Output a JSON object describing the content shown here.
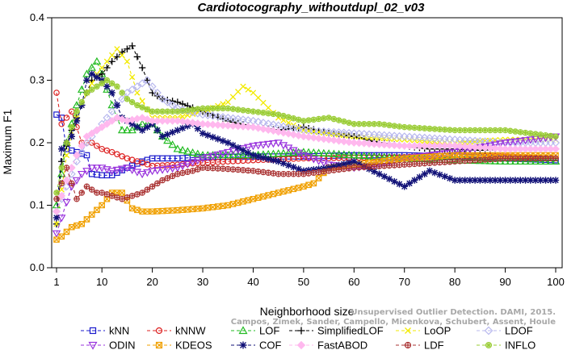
{
  "chart_data": {
    "type": "line",
    "title": "Cardiotocography_withoutdupl_02_v03",
    "xlabel": "Neighborhood size",
    "ylabel": "Maximum F1",
    "xlim": [
      1,
      100
    ],
    "ylim": [
      0.0,
      0.4
    ],
    "x_ticks": [
      1,
      10,
      20,
      30,
      40,
      50,
      60,
      70,
      80,
      90,
      100
    ],
    "y_ticks": [
      "0.0",
      "0.1",
      "0.2",
      "0.3",
      "0.4"
    ],
    "grid": false,
    "legend_position": "bottom",
    "series": [
      {
        "name": "kNN",
        "color": "#1a1acc",
        "marker": "square",
        "points": [
          [
            1,
            0.245
          ],
          [
            2,
            0.24
          ],
          [
            3,
            0.19
          ],
          [
            5,
            0.185
          ],
          [
            7,
            0.18
          ],
          [
            8,
            0.15
          ],
          [
            10,
            0.148
          ],
          [
            12,
            0.148
          ],
          [
            15,
            0.16
          ],
          [
            18,
            0.17
          ],
          [
            20,
            0.175
          ],
          [
            25,
            0.175
          ],
          [
            30,
            0.177
          ],
          [
            40,
            0.178
          ],
          [
            50,
            0.178
          ],
          [
            60,
            0.18
          ],
          [
            70,
            0.18
          ],
          [
            80,
            0.178
          ],
          [
            90,
            0.175
          ],
          [
            100,
            0.172
          ]
        ]
      },
      {
        "name": "kNNW",
        "color": "#dd2222",
        "marker": "circle",
        "points": [
          [
            1,
            0.28
          ],
          [
            2,
            0.23
          ],
          [
            4,
            0.25
          ],
          [
            6,
            0.2
          ],
          [
            8,
            0.2
          ],
          [
            10,
            0.19
          ],
          [
            12,
            0.185
          ],
          [
            15,
            0.175
          ],
          [
            18,
            0.168
          ],
          [
            20,
            0.163
          ],
          [
            25,
            0.165
          ],
          [
            30,
            0.168
          ],
          [
            40,
            0.172
          ],
          [
            50,
            0.175
          ],
          [
            60,
            0.176
          ],
          [
            70,
            0.177
          ],
          [
            80,
            0.18
          ],
          [
            90,
            0.178
          ],
          [
            100,
            0.175
          ]
        ]
      },
      {
        "name": "LOF",
        "color": "#22bb22",
        "marker": "triangle-up",
        "points": [
          [
            1,
            0.1
          ],
          [
            3,
            0.2
          ],
          [
            5,
            0.26
          ],
          [
            7,
            0.31
          ],
          [
            9,
            0.33
          ],
          [
            10,
            0.31
          ],
          [
            12,
            0.26
          ],
          [
            14,
            0.22
          ],
          [
            16,
            0.22
          ],
          [
            18,
            0.23
          ],
          [
            20,
            0.23
          ],
          [
            22,
            0.21
          ],
          [
            25,
            0.19
          ],
          [
            30,
            0.18
          ],
          [
            40,
            0.18
          ],
          [
            50,
            0.185
          ],
          [
            60,
            0.18
          ],
          [
            70,
            0.175
          ],
          [
            80,
            0.172
          ],
          [
            90,
            0.17
          ],
          [
            100,
            0.17
          ]
        ]
      },
      {
        "name": "SimplifiedLOF",
        "color": "#000000",
        "marker": "plus",
        "points": [
          [
            1,
            0.07
          ],
          [
            2,
            0.17
          ],
          [
            4,
            0.22
          ],
          [
            6,
            0.26
          ],
          [
            8,
            0.3
          ],
          [
            10,
            0.31
          ],
          [
            12,
            0.33
          ],
          [
            14,
            0.345
          ],
          [
            16,
            0.355
          ],
          [
            18,
            0.32
          ],
          [
            20,
            0.28
          ],
          [
            22,
            0.27
          ],
          [
            25,
            0.265
          ],
          [
            30,
            0.25
          ],
          [
            35,
            0.235
          ],
          [
            40,
            0.225
          ],
          [
            45,
            0.22
          ],
          [
            50,
            0.225
          ],
          [
            55,
            0.215
          ],
          [
            60,
            0.21
          ],
          [
            65,
            0.2
          ],
          [
            70,
            0.195
          ],
          [
            75,
            0.19
          ],
          [
            80,
            0.19
          ],
          [
            85,
            0.188
          ],
          [
            90,
            0.19
          ],
          [
            95,
            0.19
          ],
          [
            100,
            0.19
          ]
        ]
      },
      {
        "name": "LoOP",
        "color": "#f2ea00",
        "marker": "x",
        "points": [
          [
            1,
            0.07
          ],
          [
            3,
            0.18
          ],
          [
            5,
            0.24
          ],
          [
            7,
            0.28
          ],
          [
            9,
            0.31
          ],
          [
            11,
            0.33
          ],
          [
            13,
            0.35
          ],
          [
            15,
            0.33
          ],
          [
            17,
            0.28
          ],
          [
            20,
            0.24
          ],
          [
            25,
            0.24
          ],
          [
            30,
            0.25
          ],
          [
            35,
            0.265
          ],
          [
            38,
            0.29
          ],
          [
            40,
            0.28
          ],
          [
            45,
            0.24
          ],
          [
            50,
            0.22
          ],
          [
            55,
            0.215
          ],
          [
            60,
            0.21
          ],
          [
            70,
            0.205
          ],
          [
            80,
            0.2
          ],
          [
            90,
            0.205
          ],
          [
            100,
            0.205
          ]
        ]
      },
      {
        "name": "LDOF",
        "color": "#b8b8ee",
        "marker": "diamond",
        "points": [
          [
            1,
            0.09
          ],
          [
            3,
            0.13
          ],
          [
            5,
            0.17
          ],
          [
            7,
            0.2
          ],
          [
            9,
            0.22
          ],
          [
            11,
            0.24
          ],
          [
            13,
            0.26
          ],
          [
            15,
            0.28
          ],
          [
            17,
            0.29
          ],
          [
            19,
            0.3
          ],
          [
            20,
            0.29
          ],
          [
            22,
            0.27
          ],
          [
            25,
            0.255
          ],
          [
            30,
            0.245
          ],
          [
            40,
            0.235
          ],
          [
            50,
            0.22
          ],
          [
            60,
            0.215
          ],
          [
            70,
            0.21
          ],
          [
            80,
            0.205
          ],
          [
            90,
            0.2
          ],
          [
            100,
            0.2
          ]
        ]
      },
      {
        "name": "ODIN",
        "color": "#9933dd",
        "marker": "triangle-down",
        "points": [
          [
            1,
            0.055
          ],
          [
            2,
            0.08
          ],
          [
            4,
            0.13
          ],
          [
            6,
            0.15
          ],
          [
            8,
            0.16
          ],
          [
            10,
            0.16
          ],
          [
            12,
            0.155
          ],
          [
            15,
            0.16
          ],
          [
            18,
            0.15
          ],
          [
            20,
            0.155
          ],
          [
            25,
            0.16
          ],
          [
            30,
            0.175
          ],
          [
            35,
            0.185
          ],
          [
            40,
            0.195
          ],
          [
            45,
            0.2
          ],
          [
            50,
            0.18
          ],
          [
            55,
            0.165
          ],
          [
            60,
            0.16
          ],
          [
            65,
            0.165
          ],
          [
            70,
            0.175
          ],
          [
            80,
            0.185
          ],
          [
            90,
            0.2
          ],
          [
            100,
            0.21
          ]
        ]
      },
      {
        "name": "KDEOS",
        "color": "#f0a000",
        "marker": "box-x",
        "points": [
          [
            1,
            0.045
          ],
          [
            2,
            0.05
          ],
          [
            4,
            0.065
          ],
          [
            6,
            0.07
          ],
          [
            8,
            0.085
          ],
          [
            10,
            0.1
          ],
          [
            12,
            0.12
          ],
          [
            14,
            0.12
          ],
          [
            16,
            0.095
          ],
          [
            18,
            0.09
          ],
          [
            20,
            0.09
          ],
          [
            25,
            0.092
          ],
          [
            30,
            0.095
          ],
          [
            35,
            0.1
          ],
          [
            40,
            0.11
          ],
          [
            45,
            0.12
          ],
          [
            50,
            0.13
          ],
          [
            52,
            0.135
          ],
          [
            55,
            0.16
          ],
          [
            60,
            0.165
          ],
          [
            65,
            0.17
          ],
          [
            70,
            0.175
          ],
          [
            80,
            0.18
          ],
          [
            90,
            0.18
          ],
          [
            100,
            0.18
          ]
        ]
      },
      {
        "name": "COF",
        "color": "#111177",
        "marker": "asterisk",
        "points": [
          [
            1,
            0.08
          ],
          [
            2,
            0.19
          ],
          [
            4,
            0.21
          ],
          [
            6,
            0.26
          ],
          [
            7,
            0.3
          ],
          [
            8,
            0.31
          ],
          [
            10,
            0.3
          ],
          [
            12,
            0.28
          ],
          [
            14,
            0.24
          ],
          [
            16,
            0.23
          ],
          [
            18,
            0.22
          ],
          [
            20,
            0.23
          ],
          [
            22,
            0.21
          ],
          [
            25,
            0.22
          ],
          [
            28,
            0.23
          ],
          [
            30,
            0.215
          ],
          [
            35,
            0.2
          ],
          [
            40,
            0.18
          ],
          [
            45,
            0.17
          ],
          [
            50,
            0.155
          ],
          [
            55,
            0.16
          ],
          [
            60,
            0.17
          ],
          [
            65,
            0.15
          ],
          [
            70,
            0.13
          ],
          [
            75,
            0.155
          ],
          [
            80,
            0.14
          ],
          [
            90,
            0.14
          ],
          [
            100,
            0.14
          ]
        ]
      },
      {
        "name": "FastABOD",
        "color": "#ffb8ee",
        "marker": "diamond-filled",
        "points": [
          [
            1,
            0.09
          ],
          [
            3,
            0.14
          ],
          [
            5,
            0.18
          ],
          [
            7,
            0.21
          ],
          [
            9,
            0.22
          ],
          [
            11,
            0.23
          ],
          [
            13,
            0.24
          ],
          [
            15,
            0.235
          ],
          [
            18,
            0.24
          ],
          [
            20,
            0.235
          ],
          [
            25,
            0.235
          ],
          [
            30,
            0.23
          ],
          [
            40,
            0.225
          ],
          [
            50,
            0.21
          ],
          [
            60,
            0.2
          ],
          [
            70,
            0.195
          ],
          [
            80,
            0.195
          ],
          [
            90,
            0.19
          ],
          [
            100,
            0.19
          ]
        ]
      },
      {
        "name": "LDF",
        "color": "#aa3333",
        "marker": "circle-plus",
        "points": [
          [
            1,
            0.11
          ],
          [
            3,
            0.16
          ],
          [
            5,
            0.11
          ],
          [
            7,
            0.13
          ],
          [
            9,
            0.12
          ],
          [
            10,
            0.12
          ],
          [
            12,
            0.115
          ],
          [
            14,
            0.11
          ],
          [
            16,
            0.115
          ],
          [
            18,
            0.12
          ],
          [
            20,
            0.13
          ],
          [
            22,
            0.14
          ],
          [
            25,
            0.15
          ],
          [
            28,
            0.155
          ],
          [
            30,
            0.16
          ],
          [
            35,
            0.158
          ],
          [
            40,
            0.155
          ],
          [
            45,
            0.15
          ],
          [
            50,
            0.15
          ],
          [
            55,
            0.155
          ],
          [
            60,
            0.16
          ],
          [
            70,
            0.165
          ],
          [
            80,
            0.17
          ],
          [
            90,
            0.175
          ],
          [
            100,
            0.175
          ]
        ]
      },
      {
        "name": "INFLO",
        "color": "#99cc33",
        "marker": "star-circle",
        "points": [
          [
            1,
            0.12
          ],
          [
            3,
            0.2
          ],
          [
            5,
            0.25
          ],
          [
            7,
            0.28
          ],
          [
            9,
            0.29
          ],
          [
            11,
            0.3
          ],
          [
            13,
            0.29
          ],
          [
            15,
            0.27
          ],
          [
            17,
            0.26
          ],
          [
            20,
            0.25
          ],
          [
            25,
            0.25
          ],
          [
            30,
            0.255
          ],
          [
            35,
            0.255
          ],
          [
            40,
            0.25
          ],
          [
            45,
            0.245
          ],
          [
            50,
            0.235
          ],
          [
            55,
            0.24
          ],
          [
            60,
            0.23
          ],
          [
            65,
            0.23
          ],
          [
            70,
            0.225
          ],
          [
            80,
            0.22
          ],
          [
            90,
            0.22
          ],
          [
            100,
            0.21
          ]
        ]
      }
    ]
  },
  "watermark": {
    "line1": "Unsupervised Outlier Detection. DAMI, 2015.",
    "line2": "Campos, Zimek, Sander, Campello, Micenkova, Schubert, Assent, Houle"
  }
}
